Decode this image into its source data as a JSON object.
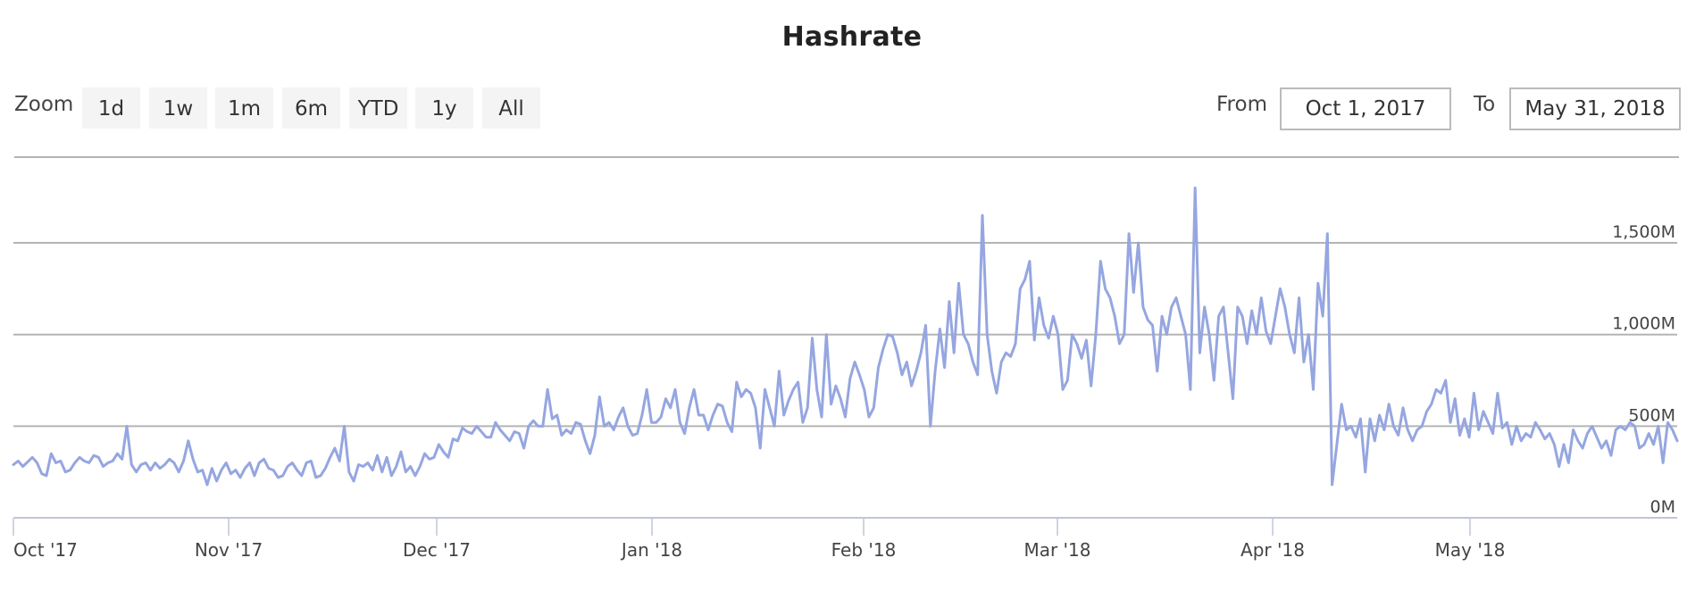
{
  "header": {
    "title": "Hashrate"
  },
  "range_selector": {
    "zoom_label": "Zoom",
    "buttons": [
      {
        "label": "1d"
      },
      {
        "label": "1w"
      },
      {
        "label": "1m"
      },
      {
        "label": "6m"
      },
      {
        "label": "YTD"
      },
      {
        "label": "1y"
      },
      {
        "label": "All"
      }
    ],
    "from_label": "From",
    "from_value": "Oct 1, 2017",
    "to_label": "To",
    "to_value": "May 31, 2018"
  },
  "colors": {
    "series": "#95a6e0",
    "grid": "#b4b4b4",
    "axis": "#c0c6d8"
  },
  "chart_data": {
    "type": "line",
    "title": "Hashrate",
    "xlabel": "",
    "ylabel": "",
    "x_start": "2017-10-01",
    "x_step": "1 day",
    "x_ticks": [
      "Oct '17",
      "Nov '17",
      "Dec '17",
      "Jan '18",
      "Feb '18",
      "Mar '18",
      "Apr '18",
      "May '18"
    ],
    "y_ticks": [
      "0M",
      "500M",
      "1,000M",
      "1,500M"
    ],
    "ylim": [
      0,
      1800
    ],
    "grid": true,
    "legend": false,
    "series": [
      {
        "name": "Hashrate",
        "unit": "M",
        "values": [
          290,
          310,
          280,
          305,
          330,
          300,
          240,
          230,
          350,
          300,
          310,
          250,
          260,
          300,
          330,
          310,
          300,
          340,
          330,
          280,
          300,
          310,
          350,
          320,
          500,
          290,
          250,
          290,
          300,
          260,
          300,
          270,
          290,
          320,
          300,
          250,
          310,
          420,
          320,
          250,
          260,
          180,
          270,
          200,
          260,
          300,
          240,
          260,
          220,
          270,
          300,
          230,
          300,
          320,
          270,
          260,
          220,
          230,
          280,
          300,
          260,
          230,
          300,
          310,
          220,
          230,
          270,
          330,
          380,
          310,
          500,
          250,
          200,
          290,
          280,
          300,
          260,
          340,
          250,
          330,
          230,
          280,
          360,
          250,
          280,
          230,
          280,
          350,
          320,
          330,
          400,
          360,
          330,
          430,
          420,
          490,
          470,
          460,
          500,
          470,
          440,
          440,
          520,
          480,
          450,
          420,
          470,
          460,
          380,
          500,
          530,
          500,
          500,
          700,
          540,
          560,
          450,
          480,
          460,
          520,
          510,
          420,
          350,
          450,
          660,
          500,
          520,
          480,
          550,
          600,
          500,
          450,
          460,
          560,
          700,
          520,
          520,
          550,
          650,
          600,
          700,
          520,
          460,
          600,
          700,
          560,
          560,
          480,
          560,
          620,
          610,
          520,
          470,
          740,
          660,
          700,
          680,
          600,
          380,
          700,
          600,
          500,
          800,
          560,
          640,
          700,
          740,
          520,
          600,
          980,
          700,
          550,
          1000,
          620,
          720,
          650,
          550,
          760,
          850,
          780,
          700,
          550,
          600,
          820,
          920,
          1000,
          990,
          900,
          780,
          850,
          720,
          800,
          900,
          1050,
          500,
          800,
          1030,
          820,
          1180,
          900,
          1280,
          1000,
          950,
          850,
          780,
          1650,
          1000,
          800,
          680,
          850,
          900,
          880,
          950,
          1250,
          1300,
          1400,
          970,
          1200,
          1050,
          980,
          1100,
          1000,
          700,
          750,
          1000,
          950,
          870,
          970,
          720,
          1000,
          1400,
          1250,
          1200,
          1100,
          950,
          1000,
          1550,
          1230,
          1500,
          1150,
          1080,
          1050,
          800,
          1100,
          1000,
          1150,
          1200,
          1100,
          1000,
          700,
          1800,
          900,
          1150,
          1000,
          750,
          1100,
          1150,
          900,
          650,
          1150,
          1100,
          950,
          1130,
          1000,
          1200,
          1020,
          950,
          1100,
          1250,
          1150,
          1000,
          900,
          1200,
          850,
          1000,
          700,
          1280,
          1100,
          1550,
          180,
          400,
          620,
          480,
          500,
          440,
          540,
          250,
          540,
          420,
          560,
          480,
          620,
          500,
          450,
          600,
          480,
          420,
          480,
          500,
          580,
          620,
          700,
          680,
          750,
          520,
          650,
          450,
          540,
          440,
          680,
          480,
          580,
          520,
          460,
          680,
          490,
          520,
          400,
          500,
          420,
          460,
          440,
          520,
          480,
          430,
          460,
          400,
          280,
          400,
          300,
          480,
          420,
          380,
          460,
          500,
          440,
          380,
          420,
          340,
          480,
          500,
          480,
          520,
          500,
          380,
          400,
          460,
          400,
          500,
          300,
          520,
          480,
          420
        ]
      }
    ]
  }
}
